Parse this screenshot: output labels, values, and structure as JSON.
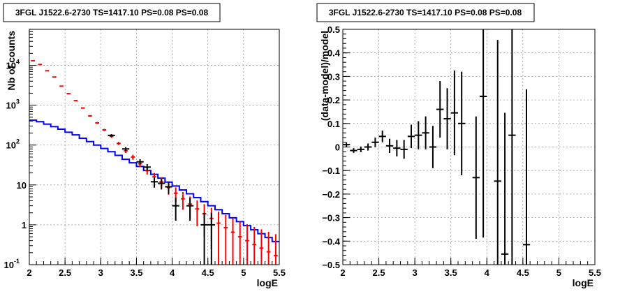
{
  "chart_data": [
    {
      "type": "line",
      "title": "3FGL J1522.6-2730 TS=1417.10 PS=0.08 PS=0.08",
      "xlabel": "logE",
      "ylabel": "Nb of counts",
      "xlim": [
        2,
        5.5
      ],
      "ylim": [
        0.1,
        80000
      ],
      "yscale": "log",
      "grid": true,
      "x_ticks": [
        {
          "v": 2,
          "label": "2"
        },
        {
          "v": 2.5,
          "label": "2.5"
        },
        {
          "v": 3,
          "label": "3"
        },
        {
          "v": 3.5,
          "label": "3.5"
        },
        {
          "v": 4,
          "label": "4"
        },
        {
          "v": 4.5,
          "label": "4.5"
        },
        {
          "v": 5,
          "label": "5"
        },
        {
          "v": 5.5,
          "label": "5.5"
        }
      ],
      "y_ticks": [
        {
          "v": 0.1,
          "label": "10",
          "exp": "-1"
        },
        {
          "v": 1,
          "label": "1",
          "exp": ""
        },
        {
          "v": 10,
          "label": "10",
          "exp": ""
        },
        {
          "v": 100,
          "label": "10",
          "exp": "2"
        },
        {
          "v": 1000,
          "label": "10",
          "exp": "3"
        },
        {
          "v": 10000,
          "label": "10",
          "exp": "4"
        }
      ],
      "bin_width": 0.1,
      "series": [
        {
          "role": "model-total",
          "color": "#ff0000",
          "style": "markers-errorbars",
          "x": [
            2.05,
            2.15,
            2.25,
            2.35,
            2.45,
            2.55,
            2.65,
            2.75,
            2.85,
            2.95,
            3.05,
            3.15,
            3.25,
            3.35,
            3.45,
            3.55,
            3.65,
            3.75,
            3.85,
            3.95,
            4.05,
            4.15,
            4.25,
            4.35,
            4.45,
            4.55,
            4.65,
            4.75,
            4.85,
            4.95,
            5.05,
            5.15,
            5.25,
            5.35,
            5.45
          ],
          "y": [
            13000,
            10500,
            7300,
            5100,
            3000,
            1950,
            1300,
            850,
            540,
            360,
            240,
            165,
            110,
            72,
            50,
            34,
            23,
            16,
            12,
            8.6,
            6.2,
            4.5,
            3.3,
            2.5,
            1.9,
            1.45,
            1.1,
            0.85,
            0.65,
            0.5,
            0.4,
            0.32,
            0.26,
            0.21,
            0.17
          ]
        },
        {
          "role": "source-model",
          "color": "#0000ff",
          "style": "step",
          "x": [
            2.05,
            2.15,
            2.25,
            2.35,
            2.45,
            2.55,
            2.65,
            2.75,
            2.85,
            2.95,
            3.05,
            3.15,
            3.25,
            3.35,
            3.45,
            3.55,
            3.65,
            3.75,
            3.85,
            3.95,
            4.05,
            4.15,
            4.25,
            4.35,
            4.45,
            4.55,
            4.65,
            4.75,
            4.85,
            4.95,
            5.05,
            5.15,
            5.25,
            5.35,
            5.45
          ],
          "y": [
            420,
            385,
            335,
            290,
            250,
            210,
            180,
            148,
            122,
            100,
            82,
            68,
            55,
            44,
            36,
            29,
            23,
            18.5,
            14.8,
            11.8,
            9.4,
            7.5,
            6.0,
            4.8,
            3.8,
            3.0,
            2.4,
            1.9,
            1.5,
            1.2,
            0.95,
            0.75,
            0.6,
            0.48,
            0.38
          ]
        },
        {
          "role": "data",
          "color": "#000000",
          "style": "points-errorbars",
          "x": [
            3.15,
            3.35,
            3.55,
            3.65,
            3.75,
            3.85,
            3.95,
            4.05,
            4.25,
            4.45,
            4.55
          ],
          "y": [
            175,
            80,
            38,
            28,
            12,
            11,
            9,
            3,
            3,
            1,
            1
          ]
        }
      ]
    },
    {
      "type": "scatter",
      "title": "3FGL J1522.6-2730 TS=1417.10 PS=0.08 PS=0.08",
      "xlabel": "logE",
      "ylabel": "(data-model)/model",
      "xlim": [
        2,
        5.5
      ],
      "ylim": [
        -0.5,
        0.5
      ],
      "grid": true,
      "x_ticks": [
        {
          "v": 2,
          "label": "2"
        },
        {
          "v": 2.5,
          "label": "2.5"
        },
        {
          "v": 3,
          "label": "3"
        },
        {
          "v": 3.5,
          "label": "3.5"
        },
        {
          "v": 4,
          "label": "4"
        },
        {
          "v": 4.5,
          "label": "4.5"
        },
        {
          "v": 5,
          "label": "5"
        },
        {
          "v": 5.5,
          "label": "5.5"
        }
      ],
      "y_ticks": [
        {
          "v": -0.5,
          "label": "−0.5"
        },
        {
          "v": -0.4,
          "label": "−0.4"
        },
        {
          "v": -0.3,
          "label": "−0.3"
        },
        {
          "v": -0.2,
          "label": "−0.2"
        },
        {
          "v": -0.1,
          "label": "−0.1"
        },
        {
          "v": 0,
          "label": "0"
        },
        {
          "v": 0.1,
          "label": "0.1"
        },
        {
          "v": 0.2,
          "label": "0.2"
        },
        {
          "v": 0.3,
          "label": "0.3"
        },
        {
          "v": 0.4,
          "label": "0.4"
        },
        {
          "v": 0.5,
          "label": "0.5"
        }
      ],
      "bin_width": 0.1,
      "series": [
        {
          "role": "residuals",
          "color": "#000000",
          "x": [
            2.05,
            2.15,
            2.25,
            2.35,
            2.45,
            2.55,
            2.65,
            2.75,
            2.85,
            2.95,
            3.05,
            3.15,
            3.25,
            3.35,
            3.45,
            3.55,
            3.65,
            3.85,
            3.95,
            4.15,
            4.25,
            4.35,
            4.55
          ],
          "y": [
            0.01,
            -0.015,
            -0.01,
            0.0,
            0.02,
            0.045,
            0.005,
            -0.005,
            -0.01,
            0.045,
            0.05,
            0.06,
            0.0,
            0.16,
            0.12,
            0.145,
            0.1,
            -0.13,
            0.215,
            -0.145,
            -0.455,
            0.05,
            -0.415
          ],
          "err": [
            0.01,
            0.01,
            0.012,
            0.015,
            0.02,
            0.025,
            0.03,
            0.035,
            0.04,
            0.05,
            0.06,
            0.07,
            0.09,
            0.12,
            0.13,
            0.18,
            0.22,
            0.26,
            0.6,
            0.6,
            0.6,
            0.6,
            0.66
          ]
        }
      ]
    }
  ]
}
